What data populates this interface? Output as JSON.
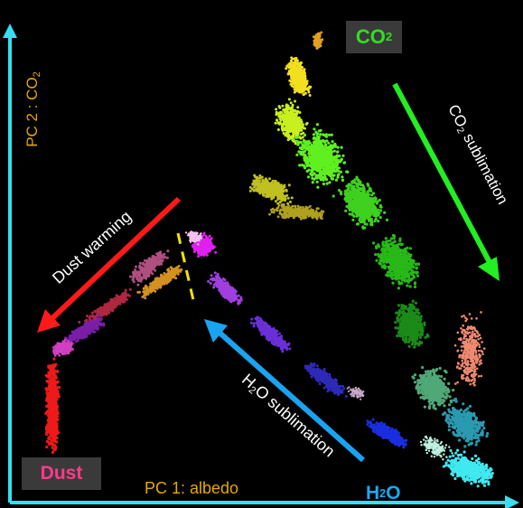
{
  "colors": {
    "axis": "#33e0f0",
    "axis_label": "#e6a800",
    "co2_box_text": "#33dd22",
    "dust_box_text": "#ff3a8c",
    "h2o_box_text": "#1aaaf0",
    "arrow_co2": "#22ee22",
    "arrow_dust": "#ff1a1a",
    "arrow_h2o": "#1aa3f0",
    "divider": "#f2e400"
  },
  "axes": {
    "y_label_pc": "PC 2 : CO",
    "y_label_sub": "2",
    "x_label": "PC 1: albedo"
  },
  "boxes": {
    "co2": {
      "main": "CO",
      "sub": "2"
    },
    "dust": {
      "main": "Dust"
    },
    "h2o": {
      "main": "H",
      "sub": "2",
      "tail": "O"
    }
  },
  "arrows": {
    "co2": {
      "main": "CO",
      "sub": "2",
      "tail": " sublimation"
    },
    "dust": {
      "label": "Dust warming"
    },
    "h2o": {
      "main": "H",
      "sub": "2",
      "tail": "O sublimation"
    }
  }
}
